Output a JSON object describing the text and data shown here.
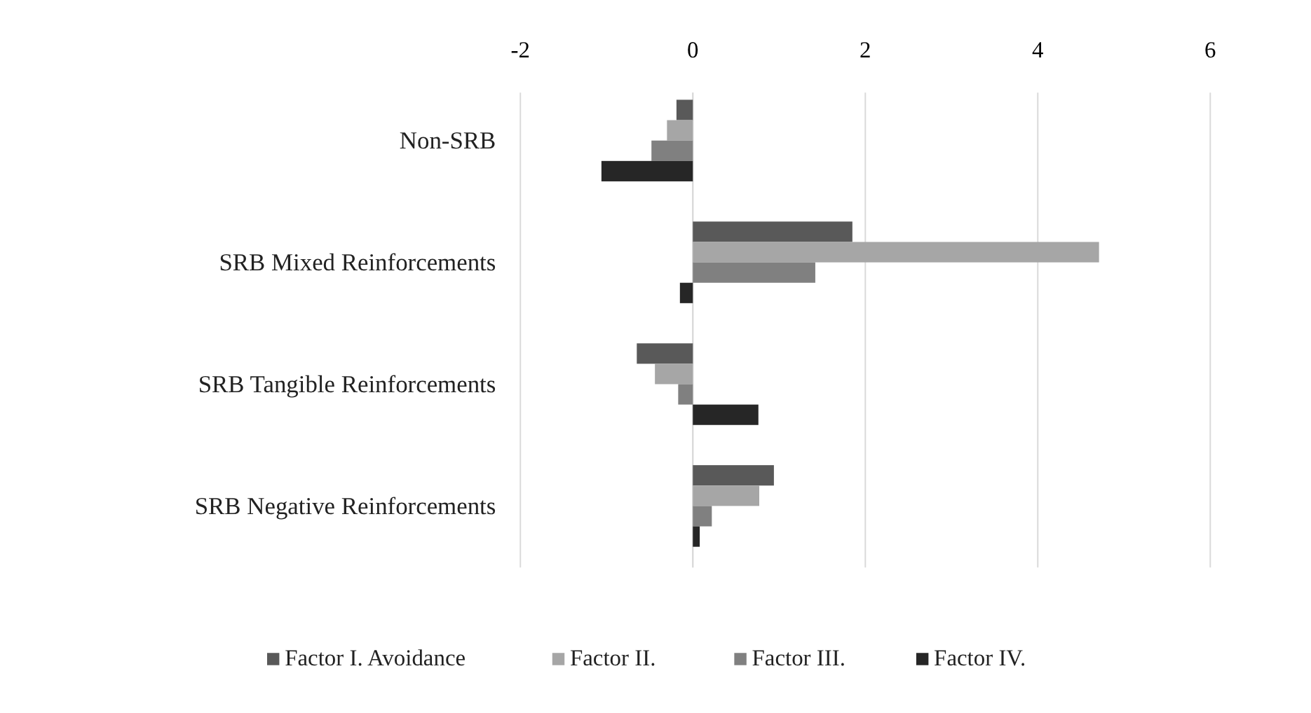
{
  "chart_data": {
    "type": "bar",
    "orientation": "horizontal",
    "categories": [
      "Non-SRB",
      "SRB Mixed Reinforcements",
      "SRB Tangible Reinforcements",
      "SRB Negative Reinforcements"
    ],
    "series": [
      {
        "name": "Factor I. Avoidance",
        "color": "#595959",
        "values": [
          -0.19,
          1.85,
          -0.65,
          0.94
        ]
      },
      {
        "name": "Factor II.",
        "color": "#a6a6a6",
        "values": [
          -0.3,
          4.71,
          -0.44,
          0.77
        ]
      },
      {
        "name": "Factor III.",
        "color": "#808080",
        "values": [
          -0.48,
          1.42,
          -0.17,
          0.22
        ]
      },
      {
        "name": "Factor IV.",
        "color": "#262626",
        "values": [
          -1.06,
          -0.15,
          0.76,
          0.08
        ]
      }
    ],
    "xlim": [
      -2,
      6
    ],
    "xticks": [
      -2,
      0,
      2,
      4,
      6
    ],
    "grid": "x",
    "legend": "bottom"
  }
}
